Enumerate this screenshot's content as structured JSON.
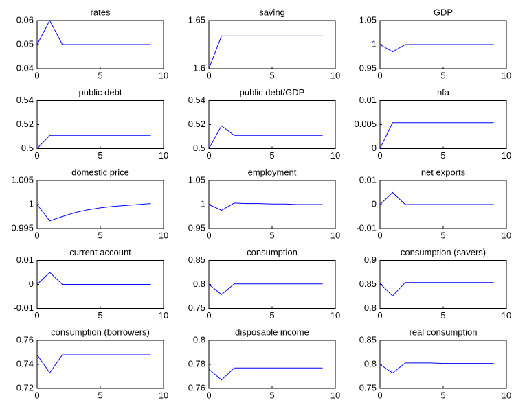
{
  "chart_data": [
    {
      "type": "line",
      "title": "rates",
      "x": [
        0,
        1,
        2,
        3,
        4,
        5,
        6,
        7,
        8,
        9
      ],
      "values": [
        0.05,
        0.06,
        0.05,
        0.05,
        0.05,
        0.05,
        0.05,
        0.05,
        0.05,
        0.05
      ],
      "color": "#0000ff",
      "xlim": [
        0,
        10
      ],
      "ylim": [
        0.04,
        0.06
      ],
      "xticks": [
        0,
        5,
        10
      ],
      "yticks": [
        0.04,
        0.05,
        0.06
      ]
    },
    {
      "type": "line",
      "title": "saving",
      "x": [
        0,
        1,
        2,
        3,
        4,
        5,
        6,
        7,
        8,
        9
      ],
      "values": [
        1.6,
        1.634,
        1.634,
        1.634,
        1.634,
        1.634,
        1.634,
        1.634,
        1.634,
        1.634
      ],
      "color": "#0000ff",
      "xlim": [
        0,
        10
      ],
      "ylim": [
        1.6,
        1.65
      ],
      "xticks": [
        0,
        5,
        10
      ],
      "yticks": [
        1.6,
        1.65
      ]
    },
    {
      "type": "line",
      "title": "GDP",
      "x": [
        0,
        1,
        2,
        3,
        4,
        5,
        6,
        7,
        8,
        9
      ],
      "values": [
        1,
        0.985,
        1,
        1,
        1,
        1,
        1,
        1,
        1,
        1
      ],
      "color": "#0000ff",
      "xlim": [
        0,
        10
      ],
      "ylim": [
        0.95,
        1.05
      ],
      "xticks": [
        0,
        5,
        10
      ],
      "yticks": [
        0.95,
        1,
        1.05
      ]
    },
    {
      "type": "line",
      "title": "public debt",
      "x": [
        0,
        1,
        2,
        3,
        4,
        5,
        6,
        7,
        8,
        9
      ],
      "values": [
        0.5,
        0.511,
        0.511,
        0.511,
        0.511,
        0.511,
        0.511,
        0.511,
        0.511,
        0.511
      ],
      "color": "#0000ff",
      "xlim": [
        0,
        10
      ],
      "ylim": [
        0.5,
        0.54
      ],
      "xticks": [
        0,
        5,
        10
      ],
      "yticks": [
        0.5,
        0.52,
        0.54
      ]
    },
    {
      "type": "line",
      "title": "public debt/GDP",
      "x": [
        0,
        1,
        2,
        3,
        4,
        5,
        6,
        7,
        8,
        9
      ],
      "values": [
        0.5,
        0.519,
        0.511,
        0.511,
        0.511,
        0.511,
        0.511,
        0.511,
        0.511,
        0.511
      ],
      "color": "#0000ff",
      "xlim": [
        0,
        10
      ],
      "ylim": [
        0.5,
        0.54
      ],
      "xticks": [
        0,
        5,
        10
      ],
      "yticks": [
        0.5,
        0.52,
        0.54
      ]
    },
    {
      "type": "line",
      "title": "nfa",
      "x": [
        0,
        1,
        2,
        3,
        4,
        5,
        6,
        7,
        8,
        9
      ],
      "values": [
        0,
        0.0054,
        0.0054,
        0.0054,
        0.0054,
        0.0054,
        0.0054,
        0.0054,
        0.0054,
        0.0054
      ],
      "color": "#0000ff",
      "xlim": [
        0,
        10
      ],
      "ylim": [
        0,
        0.01
      ],
      "xticks": [
        0,
        5,
        10
      ],
      "yticks": [
        0,
        0.005,
        0.01
      ]
    },
    {
      "type": "line",
      "title": "domestic price",
      "x": [
        0,
        1,
        2,
        3,
        4,
        5,
        6,
        7,
        8,
        9
      ],
      "values": [
        1,
        0.9966,
        0.9975,
        0.9983,
        0.9989,
        0.9993,
        0.9996,
        0.9998,
        1,
        1.0002
      ],
      "color": "#0000ff",
      "xlim": [
        0,
        10
      ],
      "ylim": [
        0.995,
        1.005
      ],
      "xticks": [
        0,
        5,
        10
      ],
      "yticks": [
        0.995,
        1,
        1.005
      ]
    },
    {
      "type": "line",
      "title": "employment",
      "x": [
        0,
        1,
        2,
        3,
        4,
        5,
        6,
        7,
        8,
        9
      ],
      "values": [
        1,
        0.988,
        1.003,
        1.002,
        1.002,
        1.001,
        1.001,
        1,
        1,
        1
      ],
      "color": "#0000ff",
      "xlim": [
        0,
        10
      ],
      "ylim": [
        0.95,
        1.05
      ],
      "xticks": [
        0,
        5,
        10
      ],
      "yticks": [
        0.95,
        1,
        1.05
      ]
    },
    {
      "type": "line",
      "title": "net exports",
      "x": [
        0,
        1,
        2,
        3,
        4,
        5,
        6,
        7,
        8,
        9
      ],
      "values": [
        0,
        0.005,
        0,
        0,
        0,
        0,
        0,
        0,
        0,
        0
      ],
      "color": "#0000ff",
      "xlim": [
        0,
        10
      ],
      "ylim": [
        -0.01,
        0.01
      ],
      "xticks": [
        0,
        5,
        10
      ],
      "yticks": [
        -0.01,
        0,
        0.01
      ]
    },
    {
      "type": "line",
      "title": "current account",
      "x": [
        0,
        1,
        2,
        3,
        4,
        5,
        6,
        7,
        8,
        9
      ],
      "values": [
        0,
        0.005,
        0,
        0,
        0,
        0,
        0,
        0,
        0,
        0
      ],
      "color": "#0000ff",
      "xlim": [
        0,
        10
      ],
      "ylim": [
        -0.01,
        0.01
      ],
      "xticks": [
        0,
        5,
        10
      ],
      "yticks": [
        -0.01,
        0,
        0.01
      ]
    },
    {
      "type": "line",
      "title": "consumption",
      "x": [
        0,
        1,
        2,
        3,
        4,
        5,
        6,
        7,
        8,
        9
      ],
      "values": [
        0.8,
        0.779,
        0.801,
        0.801,
        0.801,
        0.801,
        0.801,
        0.801,
        0.801,
        0.801
      ],
      "color": "#0000ff",
      "xlim": [
        0,
        10
      ],
      "ylim": [
        0.75,
        0.85
      ],
      "xticks": [
        0,
        5,
        10
      ],
      "yticks": [
        0.75,
        0.8,
        0.85
      ]
    },
    {
      "type": "line",
      "title": "consumption (savers)",
      "x": [
        0,
        1,
        2,
        3,
        4,
        5,
        6,
        7,
        8,
        9
      ],
      "values": [
        0.852,
        0.826,
        0.854,
        0.854,
        0.854,
        0.854,
        0.854,
        0.854,
        0.854,
        0.854
      ],
      "color": "#0000ff",
      "xlim": [
        0,
        10
      ],
      "ylim": [
        0.8,
        0.9
      ],
      "xticks": [
        0,
        5,
        10
      ],
      "yticks": [
        0.8,
        0.85,
        0.9
      ]
    },
    {
      "type": "line",
      "title": "consumption (borrowers)",
      "x": [
        0,
        1,
        2,
        3,
        4,
        5,
        6,
        7,
        8,
        9
      ],
      "values": [
        0.748,
        0.733,
        0.748,
        0.748,
        0.748,
        0.748,
        0.748,
        0.748,
        0.748,
        0.748
      ],
      "color": "#0000ff",
      "xlim": [
        0,
        10
      ],
      "ylim": [
        0.72,
        0.76
      ],
      "xticks": [
        0,
        5,
        10
      ],
      "yticks": [
        0.72,
        0.74,
        0.76
      ]
    },
    {
      "type": "line",
      "title": "disposable income",
      "x": [
        0,
        1,
        2,
        3,
        4,
        5,
        6,
        7,
        8,
        9
      ],
      "values": [
        0.776,
        0.767,
        0.777,
        0.777,
        0.777,
        0.777,
        0.777,
        0.777,
        0.777,
        0.777
      ],
      "color": "#0000ff",
      "xlim": [
        0,
        10
      ],
      "ylim": [
        0.76,
        0.8
      ],
      "xticks": [
        0,
        5,
        10
      ],
      "yticks": [
        0.76,
        0.78,
        0.8
      ]
    },
    {
      "type": "line",
      "title": "real consumption",
      "x": [
        0,
        1,
        2,
        3,
        4,
        5,
        6,
        7,
        8,
        9
      ],
      "values": [
        0.8,
        0.782,
        0.803,
        0.803,
        0.803,
        0.802,
        0.802,
        0.802,
        0.802,
        0.802
      ],
      "color": "#0000ff",
      "xlim": [
        0,
        10
      ],
      "ylim": [
        0.75,
        0.85
      ],
      "xticks": [
        0,
        5,
        10
      ],
      "yticks": [
        0.75,
        0.8,
        0.85
      ]
    }
  ]
}
